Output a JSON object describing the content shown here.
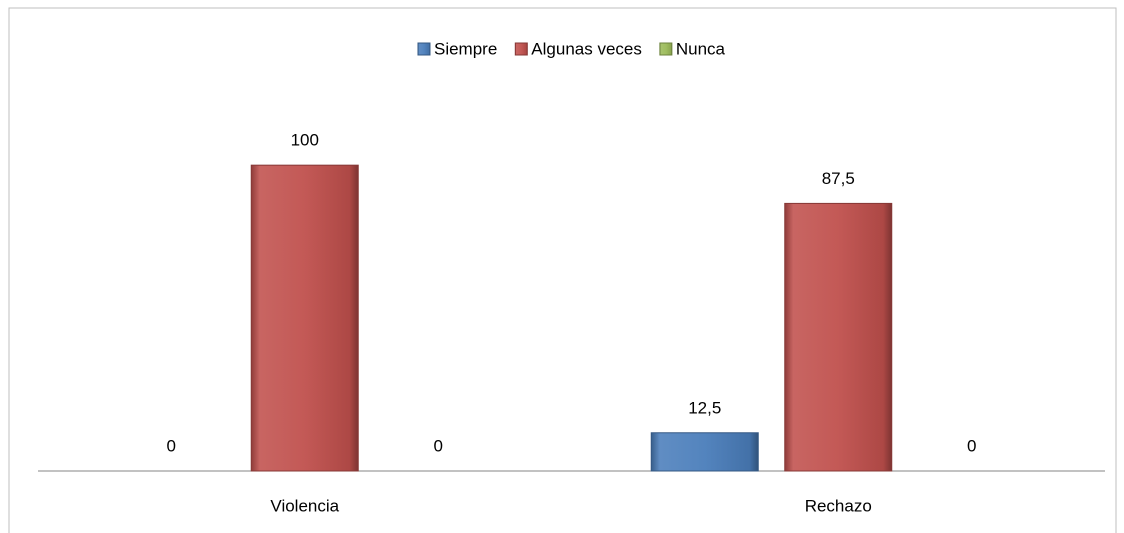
{
  "chart_data": {
    "type": "bar",
    "categories": [
      "Violencia",
      "Rechazo"
    ],
    "series": [
      {
        "name": "Siempre",
        "color": "#4a7ebb",
        "values": [
          0,
          12.5
        ],
        "value_labels": [
          "0",
          "12,5"
        ]
      },
      {
        "name": "Algunas veces",
        "color": "#c0504d",
        "values": [
          100,
          87.5
        ],
        "value_labels": [
          "100",
          "87,5"
        ]
      },
      {
        "name": "Nunca",
        "color": "#9bbb59",
        "values": [
          0,
          0
        ],
        "value_labels": [
          "0",
          "0"
        ]
      }
    ],
    "ylim": [
      0,
      120
    ],
    "legend": "top"
  }
}
